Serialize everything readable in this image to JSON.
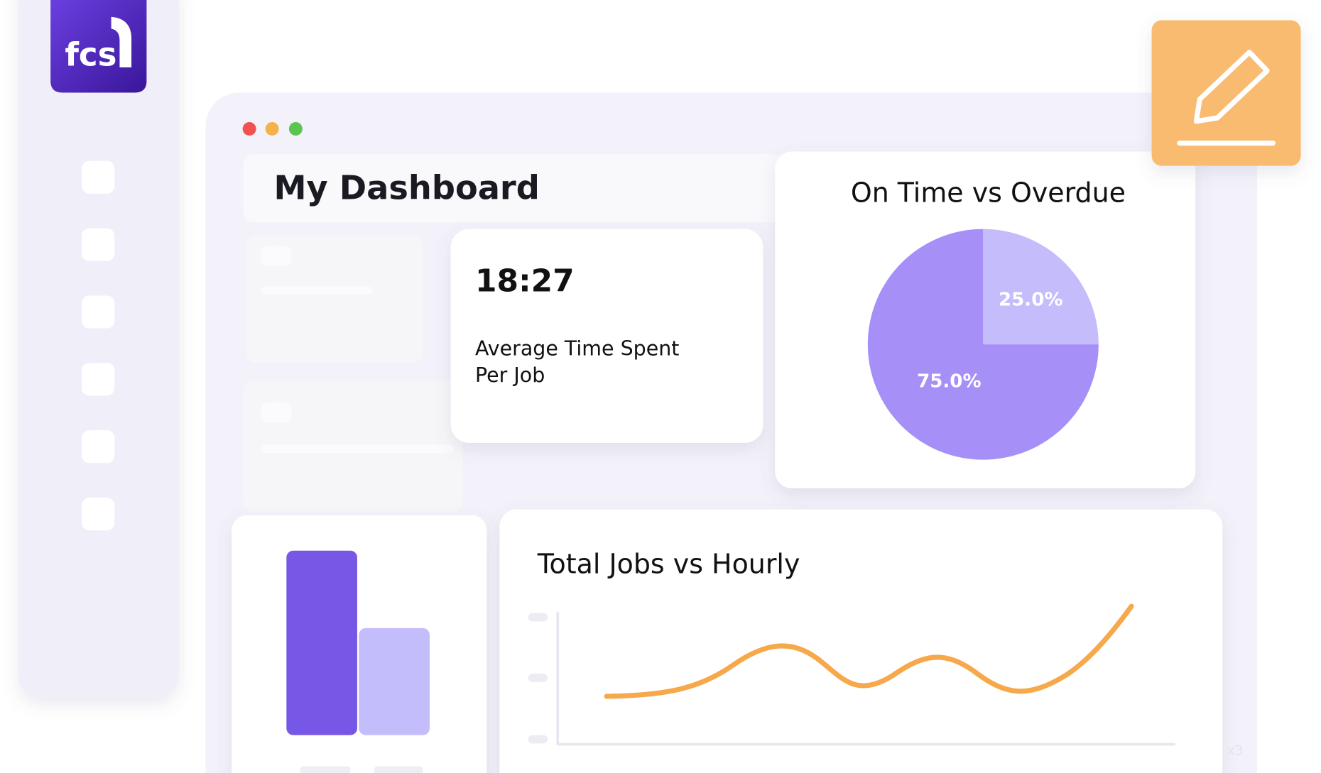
{
  "logo": {
    "text": "fcs"
  },
  "header": {
    "title": "My Dashboard"
  },
  "metric": {
    "value": "18:27",
    "label_lines": [
      "Average Time Spent",
      "Per Job"
    ]
  },
  "chart_data": {
    "type": "pie",
    "title": "On Time vs Overdue",
    "values": [
      25,
      75
    ],
    "value_labels": [
      "25.0%",
      "75.0%"
    ],
    "colors": [
      "#c5bcfb",
      "#a690f8"
    ]
  },
  "line_card": {
    "title": "Total Jobs vs Hourly"
  },
  "watermark": "x3"
}
